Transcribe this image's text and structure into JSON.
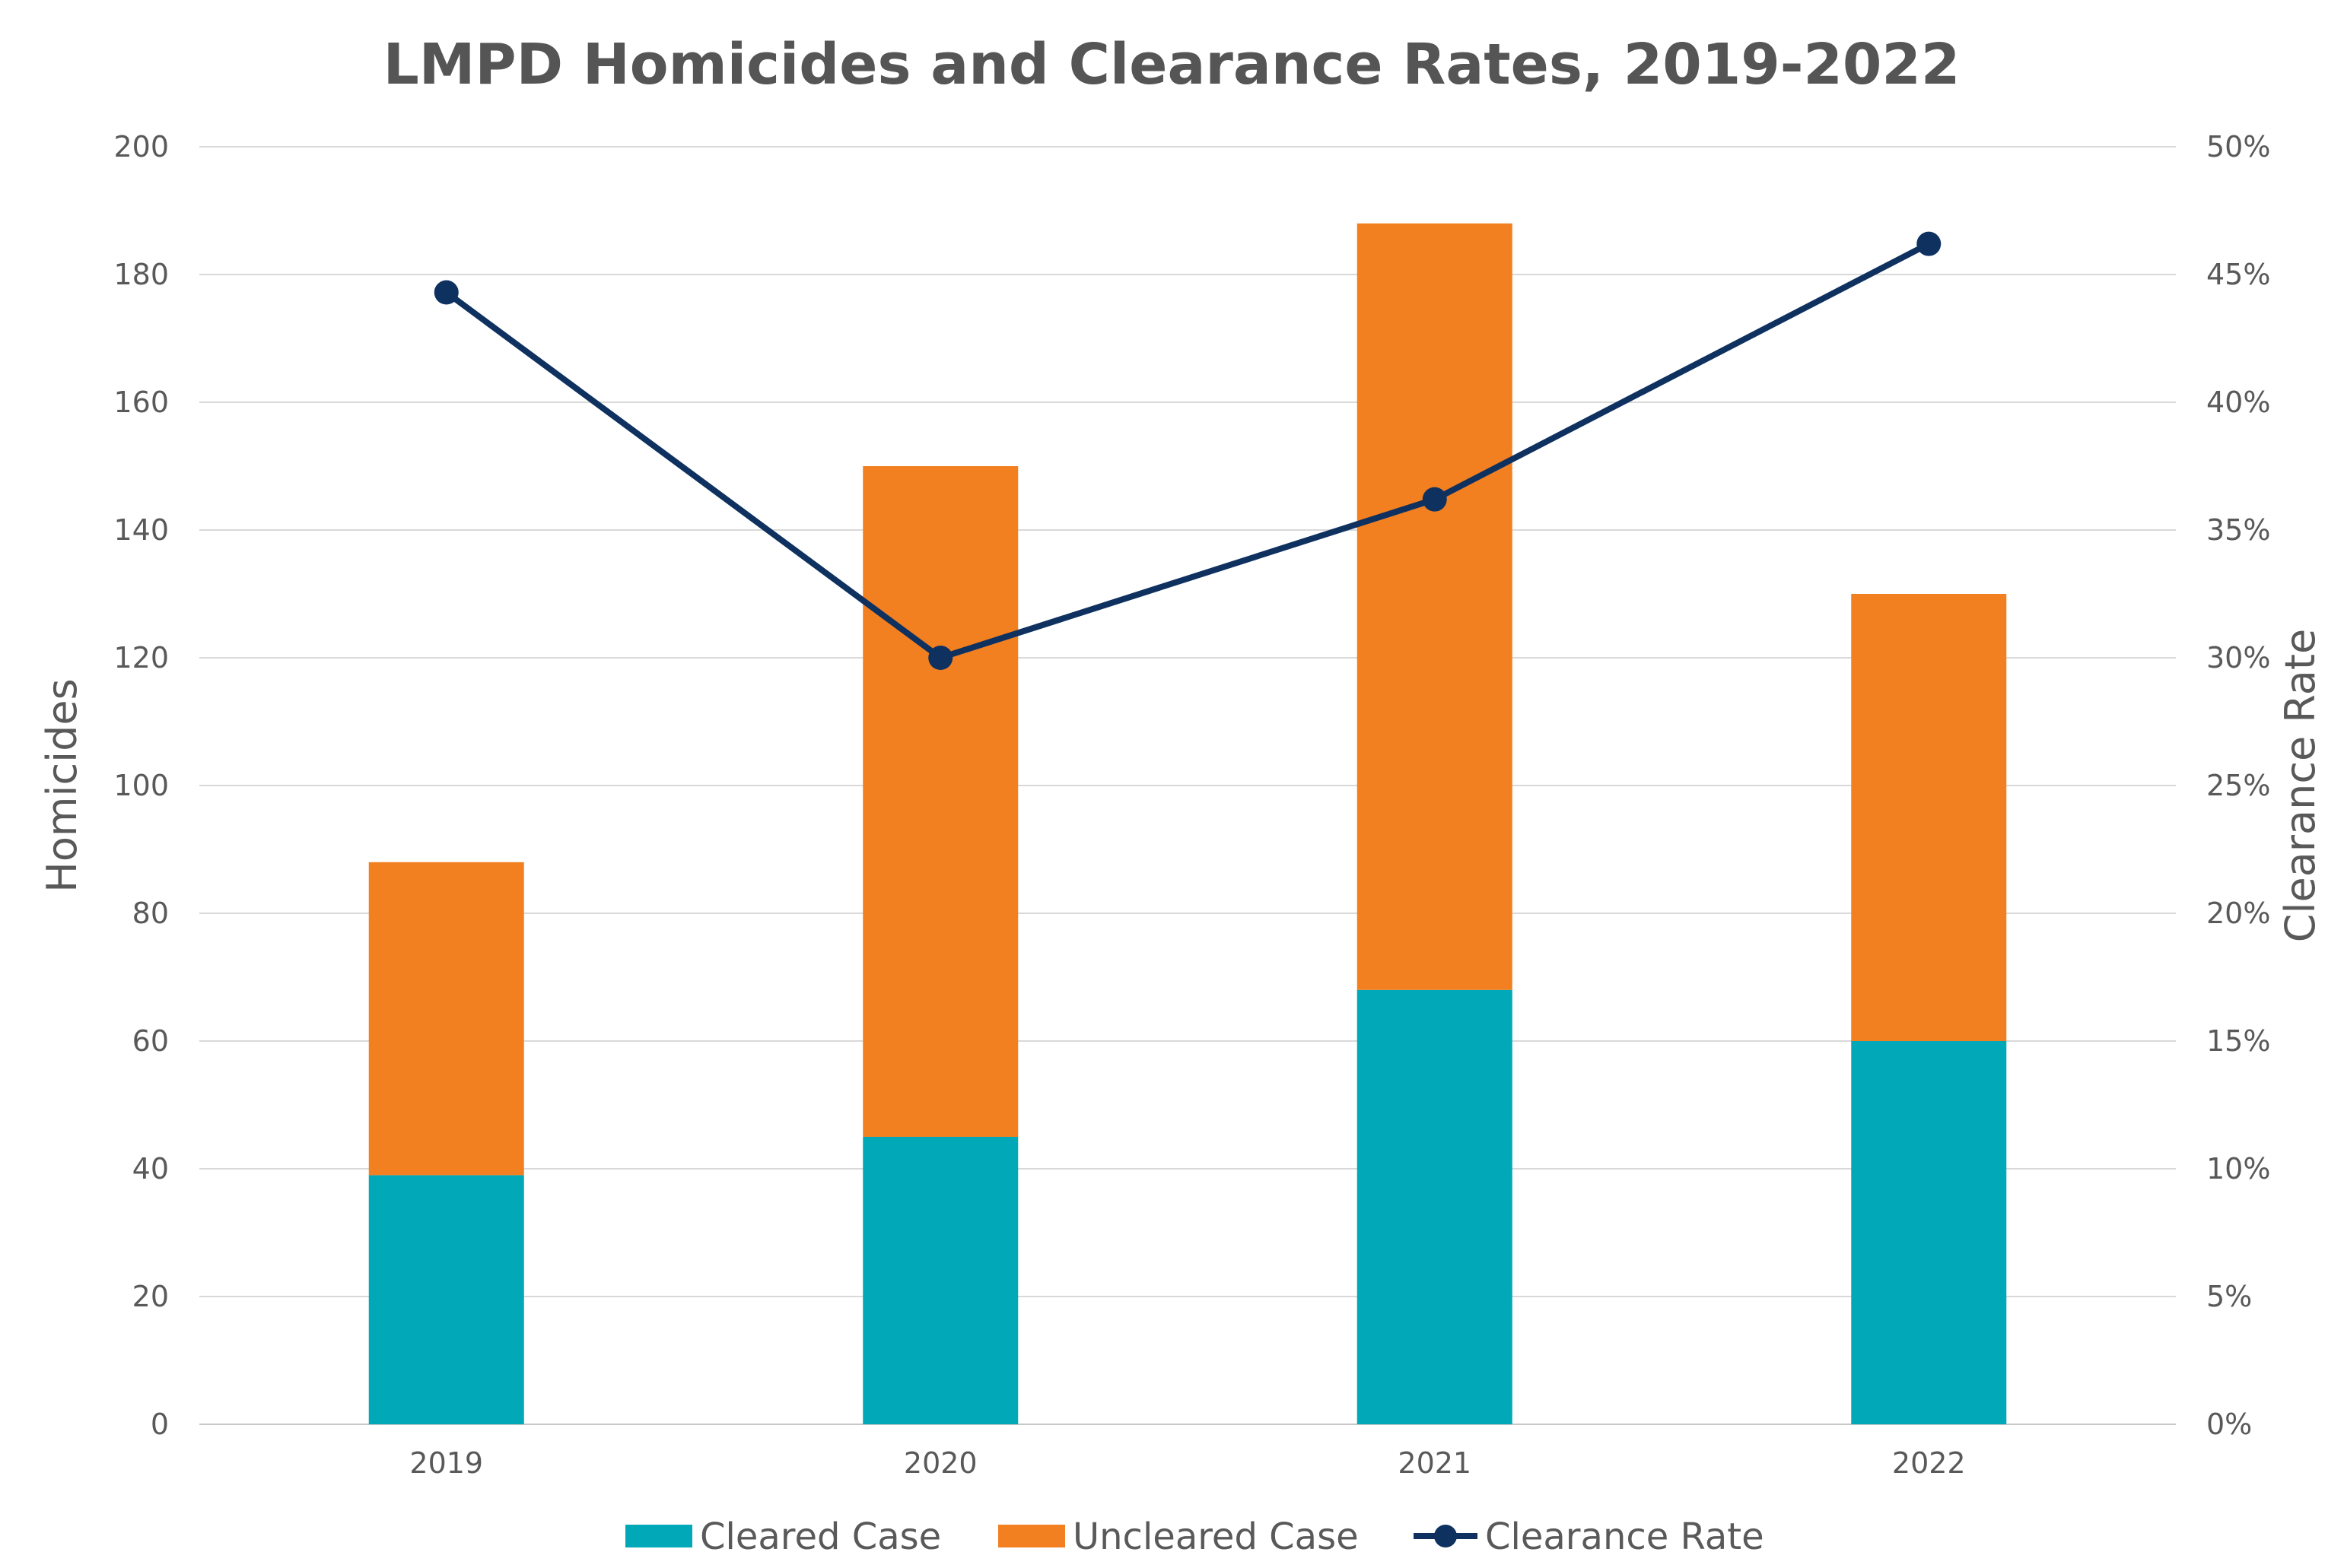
{
  "chart_data": {
    "type": "bar",
    "stacked": true,
    "title": "LMPD Homicides and Clearance Rates, 2019-2022",
    "categories": [
      "2019",
      "2020",
      "2021",
      "2022"
    ],
    "series": [
      {
        "name": "Cleared Case",
        "type": "bar",
        "axis": "left",
        "color": "#00A8B8",
        "values": [
          39,
          45,
          68,
          60
        ]
      },
      {
        "name": "Uncleared Case",
        "type": "bar",
        "axis": "left",
        "color": "#F28021",
        "values": [
          49,
          105,
          120,
          70
        ]
      },
      {
        "name": "Clearance Rate",
        "type": "line",
        "axis": "right",
        "color": "#0E3160",
        "values": [
          44.3,
          30.0,
          36.2,
          46.2
        ]
      }
    ],
    "ylabel": "Homicides",
    "y2label": "Clearance Rate",
    "ylim": [
      0,
      200
    ],
    "y2lim": [
      0,
      50
    ],
    "yticks": [
      "0",
      "20",
      "40",
      "60",
      "80",
      "100",
      "120",
      "140",
      "160",
      "180",
      "200"
    ],
    "y2ticks": [
      "0%",
      "5%",
      "10%",
      "15%",
      "20%",
      "25%",
      "30%",
      "35%",
      "40%",
      "45%",
      "50%"
    ],
    "grid": true,
    "legend": "bottom"
  }
}
